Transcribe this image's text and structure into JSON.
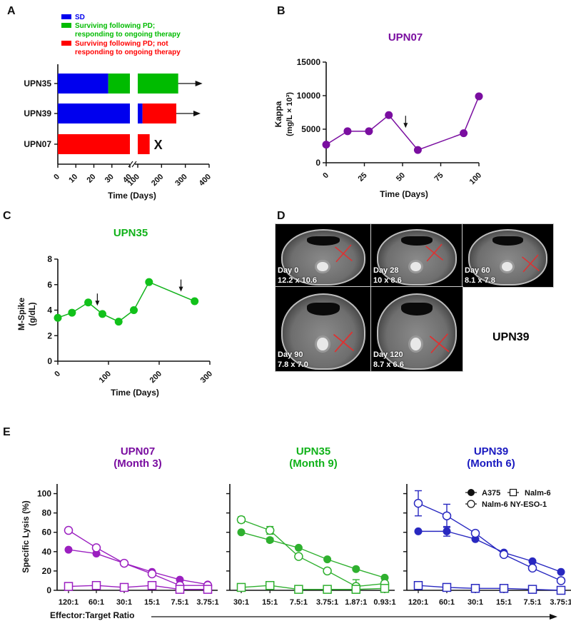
{
  "panels": {
    "A": {
      "letter": "A"
    },
    "B": {
      "letter": "B"
    },
    "C": {
      "letter": "C"
    },
    "D": {
      "letter": "D"
    },
    "E": {
      "letter": "E"
    }
  },
  "colors": {
    "blue": "#0000ee",
    "green": "#00bb00",
    "red": "#ff0000",
    "purple": "#7a0ea0",
    "purple_line": "#9b1fc0",
    "upn07": "#7a0ea0",
    "upn35": "#11b21a",
    "upn39": "#1a1ac0"
  },
  "chart_data": [
    {
      "id": "A",
      "type": "bar",
      "orientation": "horizontal-stacked-timeline",
      "legend": [
        {
          "label": "SD",
          "color": "#0000ee"
        },
        {
          "label": "Surviving following PD; responding to ongoing therapy",
          "label_line1": "Surviving following PD;",
          "label_line2": "responding to ongoing therapy",
          "color": "#00bb00"
        },
        {
          "label": "Surviving following PD; not responding to ongoing therapy",
          "label_line1": "Surviving following PD; not",
          "label_line2": "responding to ongoing therapy",
          "color": "#ff0000"
        }
      ],
      "categories": [
        "UPN35",
        "UPN39",
        "UPN07"
      ],
      "rows": [
        {
          "name": "UPN35",
          "segments": [
            {
              "state": "SD",
              "from": 0,
              "to": 28
            },
            {
              "state": "responding",
              "from": 28,
              "to": 270
            }
          ],
          "end_marker": "arrow"
        },
        {
          "name": "UPN39",
          "segments": [
            {
              "state": "SD",
              "from": 0,
              "to": 120
            },
            {
              "state": "not-responding",
              "from": 120,
              "to": 262
            }
          ],
          "end_marker": "arrow"
        },
        {
          "name": "UPN07",
          "segments": [
            {
              "state": "not-responding",
              "from": 0,
              "to": 150
            }
          ],
          "end_marker": "X"
        }
      ],
      "axis_break": [
        40,
        100
      ],
      "x_ticks_left": [
        "0",
        "10",
        "20",
        "30",
        "40"
      ],
      "x_ticks_right": [
        "100",
        "200",
        "300",
        "400"
      ],
      "xlabel": "Time (Days)",
      "end_x_label": "X"
    },
    {
      "id": "B",
      "type": "line",
      "title": "UPN07",
      "x": [
        0,
        14,
        28,
        41,
        60,
        90,
        100
      ],
      "y": [
        2700,
        4700,
        4700,
        7100,
        1900,
        4400,
        9900
      ],
      "xlim": [
        0,
        100
      ],
      "ylim": [
        0,
        15000
      ],
      "x_ticks": [
        "0",
        "25",
        "50",
        "75",
        "100"
      ],
      "y_ticks": [
        "0",
        "5000",
        "10000",
        "15000"
      ],
      "xlabel": "Time (Days)",
      "ylabel_line1": "Kappa",
      "ylabel_line2": "(mg/L × 10³)",
      "annotations": [
        {
          "type": "arrow-down",
          "x": 52,
          "y": 7000
        }
      ]
    },
    {
      "id": "C",
      "type": "line",
      "title": "UPN35",
      "x": [
        0,
        28,
        60,
        88,
        120,
        150,
        180,
        270
      ],
      "y": [
        3.4,
        3.8,
        4.6,
        3.7,
        3.1,
        4.0,
        6.2,
        4.7
      ],
      "xlim": [
        0,
        300
      ],
      "ylim": [
        0,
        8
      ],
      "x_ticks": [
        "0",
        "100",
        "200",
        "300"
      ],
      "y_ticks": [
        "0",
        "2",
        "4",
        "6",
        "8"
      ],
      "xlabel": "Time (Days)",
      "ylabel_line1": "M-Spike",
      "ylabel_line2": "(g/dL)",
      "annotations": [
        {
          "type": "arrow-down",
          "x": 78,
          "y": 5.3
        },
        {
          "type": "arrow-down",
          "x": 243,
          "y": 6.4
        }
      ]
    },
    {
      "id": "E1",
      "type": "line",
      "title_line1": "UPN07",
      "title_line2": "(Month 3)",
      "categories": [
        "120:1",
        "60:1",
        "30:1",
        "15:1",
        "7.5:1",
        "3.75:1"
      ],
      "ylim": [
        0,
        110
      ],
      "y_ticks": [
        "0",
        "20",
        "40",
        "60",
        "80",
        "100"
      ],
      "ylabel": "Specific Lysis (%)",
      "series": [
        {
          "name": "A375",
          "marker": "filled-circle",
          "values": [
            42,
            38,
            28,
            19,
            11,
            6
          ],
          "err": [
            0,
            0,
            0,
            0,
            0,
            0
          ]
        },
        {
          "name": "Nalm-6 NY-ESO-1",
          "marker": "open-circle",
          "values": [
            62,
            44,
            28,
            17,
            5,
            5
          ],
          "err": [
            0,
            0,
            0,
            0,
            0,
            0
          ]
        },
        {
          "name": "Nalm-6",
          "marker": "open-square",
          "values": [
            4,
            5,
            3,
            5,
            1,
            1
          ],
          "err": [
            0,
            0,
            0,
            0,
            0,
            0
          ]
        }
      ]
    },
    {
      "id": "E2",
      "type": "line",
      "title_line1": "UPN35",
      "title_line2": "(Month 9)",
      "categories": [
        "30:1",
        "15:1",
        "7.5:1",
        "3.75:1",
        "1.87:1",
        "0.93:1"
      ],
      "ylim": [
        0,
        110
      ],
      "y_ticks": [
        "0",
        "20",
        "40",
        "60",
        "80",
        "100"
      ],
      "ylabel": "",
      "series": [
        {
          "name": "A375",
          "marker": "filled-circle",
          "values": [
            60,
            52,
            44,
            32,
            22,
            13
          ],
          "err": [
            0,
            2,
            0,
            0,
            0,
            0
          ]
        },
        {
          "name": "Nalm-6 NY-ESO-1",
          "marker": "open-circle",
          "values": [
            73,
            62,
            35,
            20,
            4,
            7
          ],
          "err": [
            3,
            4,
            0,
            0,
            7,
            0
          ]
        },
        {
          "name": "Nalm-6",
          "marker": "open-square",
          "values": [
            3,
            5,
            1,
            1,
            1,
            2
          ],
          "err": [
            0,
            0,
            0,
            0,
            0,
            0
          ]
        }
      ]
    },
    {
      "id": "E3",
      "type": "line",
      "title_line1": "UPN39",
      "title_line2": "(Month 6)",
      "categories": [
        "120:1",
        "60:1",
        "30:1",
        "15:1",
        "7.5:1",
        "3.75:1"
      ],
      "ylim": [
        0,
        110
      ],
      "y_ticks": [
        "0",
        "20",
        "40",
        "60",
        "80",
        "100"
      ],
      "ylabel": "",
      "legend": [
        {
          "label": "A375",
          "marker": "filled-circle"
        },
        {
          "label": "Nalm-6",
          "marker": "open-square"
        },
        {
          "label": "Nalm-6 NY-ESO-1",
          "marker": "open-circle"
        }
      ],
      "series": [
        {
          "name": "A375",
          "marker": "filled-circle",
          "values": [
            61,
            61,
            53,
            39,
            30,
            19
          ],
          "err": [
            0,
            5,
            0,
            0,
            0,
            0
          ]
        },
        {
          "name": "Nalm-6 NY-ESO-1",
          "marker": "open-circle",
          "values": [
            90,
            77,
            59,
            37,
            23,
            10
          ],
          "err": [
            13,
            12,
            0,
            0,
            0,
            0
          ]
        },
        {
          "name": "Nalm-6",
          "marker": "open-square",
          "values": [
            5,
            3,
            2,
            2,
            1,
            0
          ],
          "err": [
            0,
            0,
            0,
            0,
            0,
            0
          ]
        }
      ]
    }
  ],
  "panel_D": {
    "patient": "UPN39",
    "scans": [
      {
        "day": "Day 0",
        "size": "12.2 x 10.6"
      },
      {
        "day": "Day 28",
        "size": "10 x 8.6"
      },
      {
        "day": "Day 60",
        "size": "8.1 x 7.8"
      },
      {
        "day": "Day 90",
        "size": "7.8 x 7.0"
      },
      {
        "day": "Day 120",
        "size": "8.7 x 6.6"
      }
    ]
  },
  "footer": {
    "xlabel": "Effector:Target Ratio"
  }
}
